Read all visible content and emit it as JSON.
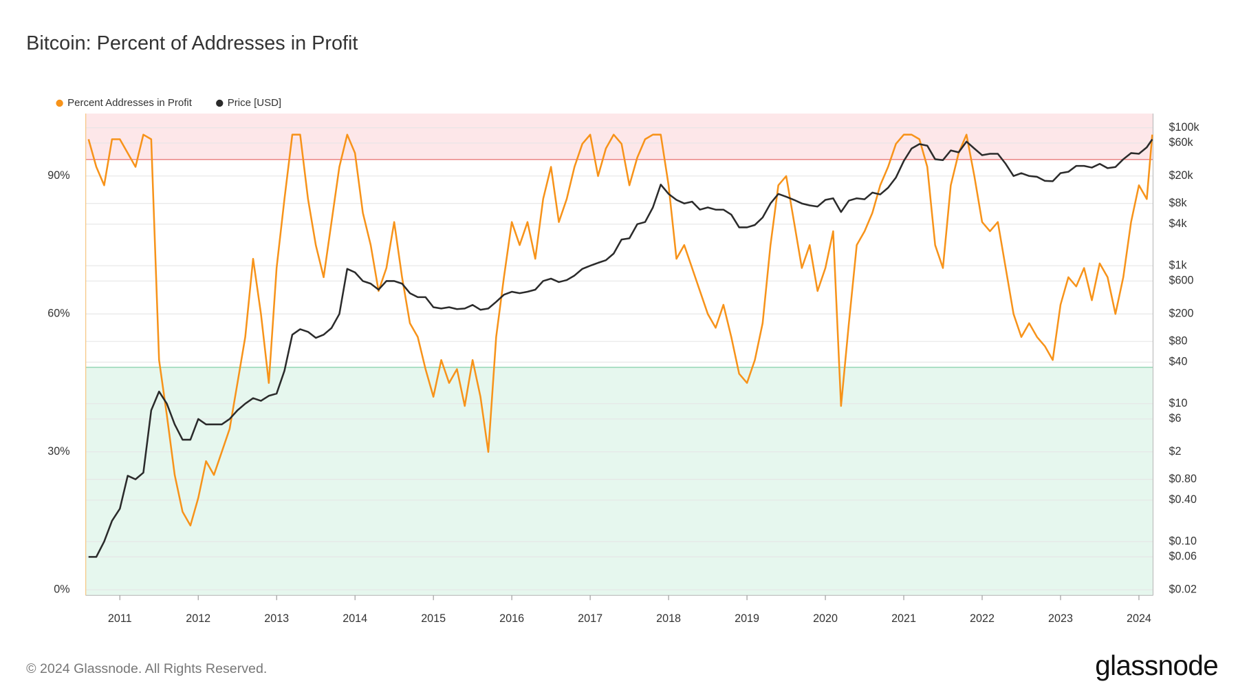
{
  "chart_data": {
    "type": "line",
    "title": "Bitcoin: Percent of Addresses in Profit",
    "x": [
      2010.6,
      2010.7,
      2010.8,
      2010.9,
      2011.0,
      2011.1,
      2011.2,
      2011.3,
      2011.4,
      2011.5,
      2011.6,
      2011.7,
      2011.8,
      2011.9,
      2012.0,
      2012.1,
      2012.2,
      2012.3,
      2012.4,
      2012.5,
      2012.6,
      2012.7,
      2012.8,
      2012.9,
      2013.0,
      2013.1,
      2013.2,
      2013.3,
      2013.4,
      2013.5,
      2013.6,
      2013.7,
      2013.8,
      2013.9,
      2014.0,
      2014.1,
      2014.2,
      2014.3,
      2014.4,
      2014.5,
      2014.6,
      2014.7,
      2014.8,
      2014.9,
      2015.0,
      2015.1,
      2015.2,
      2015.3,
      2015.4,
      2015.5,
      2015.6,
      2015.7,
      2015.8,
      2015.9,
      2016.0,
      2016.1,
      2016.2,
      2016.3,
      2016.4,
      2016.5,
      2016.6,
      2016.7,
      2016.8,
      2016.9,
      2017.0,
      2017.1,
      2017.2,
      2017.3,
      2017.4,
      2017.5,
      2017.6,
      2017.7,
      2017.8,
      2017.9,
      2018.0,
      2018.1,
      2018.2,
      2018.3,
      2018.4,
      2018.5,
      2018.6,
      2018.7,
      2018.8,
      2018.9,
      2019.0,
      2019.1,
      2019.2,
      2019.3,
      2019.4,
      2019.5,
      2019.6,
      2019.7,
      2019.8,
      2019.9,
      2020.0,
      2020.1,
      2020.2,
      2020.3,
      2020.4,
      2020.5,
      2020.6,
      2020.7,
      2020.8,
      2020.9,
      2021.0,
      2021.1,
      2021.2,
      2021.3,
      2021.4,
      2021.5,
      2021.6,
      2021.7,
      2021.8,
      2021.9,
      2022.0,
      2022.1,
      2022.2,
      2022.3,
      2022.4,
      2022.5,
      2022.6,
      2022.7,
      2022.8,
      2022.9,
      2023.0,
      2023.1,
      2023.2,
      2023.3,
      2023.4,
      2023.5,
      2023.6,
      2023.7,
      2023.8,
      2023.9,
      2024.0,
      2024.1,
      2024.17
    ],
    "series": [
      {
        "name": "Percent Addresses in Profit",
        "color": "#f7931a",
        "axis": "y",
        "values": [
          98,
          92,
          88,
          98,
          98,
          95,
          92,
          99,
          98,
          50,
          38,
          25,
          17,
          14,
          20,
          28,
          25,
          30,
          35,
          45,
          55,
          72,
          60,
          45,
          70,
          85,
          99,
          99,
          85,
          75,
          68,
          80,
          92,
          99,
          95,
          82,
          75,
          65,
          70,
          80,
          68,
          58,
          55,
          48,
          42,
          50,
          45,
          48,
          40,
          50,
          42,
          30,
          55,
          68,
          80,
          75,
          80,
          72,
          85,
          92,
          80,
          85,
          92,
          97,
          99,
          90,
          96,
          99,
          97,
          88,
          94,
          98,
          99,
          99,
          88,
          72,
          75,
          70,
          65,
          60,
          57,
          62,
          55,
          47,
          45,
          50,
          58,
          75,
          88,
          90,
          80,
          70,
          75,
          65,
          70,
          78,
          40,
          58,
          75,
          78,
          82,
          88,
          92,
          97,
          99,
          99,
          98,
          92,
          75,
          70,
          88,
          95,
          99,
          90,
          80,
          78,
          80,
          70,
          60,
          55,
          58,
          55,
          53,
          50,
          62,
          68,
          66,
          70,
          63,
          71,
          68,
          60,
          68,
          80,
          88,
          85,
          99
        ]
      },
      {
        "name": "Price [USD]",
        "color": "#2b2b2b",
        "axis": "y2",
        "values": [
          0.06,
          0.06,
          0.1,
          0.2,
          0.3,
          0.9,
          0.8,
          1,
          8,
          15,
          10,
          5,
          3,
          3,
          6,
          5,
          5,
          5,
          6,
          8,
          10,
          12,
          11,
          13,
          14,
          30,
          100,
          120,
          110,
          90,
          100,
          125,
          200,
          900,
          800,
          600,
          550,
          450,
          600,
          600,
          550,
          400,
          350,
          350,
          250,
          240,
          250,
          235,
          240,
          270,
          230,
          240,
          300,
          380,
          420,
          400,
          420,
          450,
          600,
          650,
          580,
          620,
          720,
          900,
          1000,
          1100,
          1200,
          1500,
          2400,
          2500,
          4000,
          4300,
          7000,
          15000,
          11000,
          9000,
          8000,
          8500,
          6500,
          7000,
          6500,
          6500,
          5500,
          3600,
          3600,
          3900,
          5000,
          8000,
          11000,
          10000,
          9000,
          8000,
          7500,
          7200,
          9000,
          9500,
          6000,
          8800,
          9500,
          9200,
          11500,
          10800,
          13500,
          19000,
          33000,
          50000,
          58000,
          55000,
          35000,
          34000,
          47000,
          44000,
          63000,
          50000,
          40000,
          42000,
          42000,
          30000,
          20000,
          22000,
          20000,
          19500,
          17000,
          16800,
          22000,
          23000,
          28000,
          28000,
          26500,
          30000,
          26000,
          27000,
          35000,
          43000,
          42000,
          52000,
          68000
        ]
      }
    ],
    "xlim": [
      2010.565,
      2024.18
    ],
    "xticks": [
      2011,
      2012,
      2013,
      2014,
      2015,
      2016,
      2017,
      2018,
      2019,
      2020,
      2021,
      2022,
      2023,
      2024
    ],
    "ylim": [
      -1.2,
      103.6
    ],
    "yticks": [
      {
        "value": 0,
        "label": "0%"
      },
      {
        "value": 30,
        "label": "30%"
      },
      {
        "value": 60,
        "label": "60%"
      },
      {
        "value": 90,
        "label": "90%"
      }
    ],
    "y2lim": [
      0.0166,
      161000
    ],
    "y2_log_scale": true,
    "y2ticks": [
      {
        "value": 100000,
        "label": "$100k"
      },
      {
        "value": 60000,
        "label": "$60k"
      },
      {
        "value": 20000,
        "label": "$20k"
      },
      {
        "value": 8000,
        "label": "$8k"
      },
      {
        "value": 4000,
        "label": "$4k"
      },
      {
        "value": 1000,
        "label": "$1k"
      },
      {
        "value": 600,
        "label": "$600"
      },
      {
        "value": 200,
        "label": "$200"
      },
      {
        "value": 80,
        "label": "$80"
      },
      {
        "value": 40,
        "label": "$40"
      },
      {
        "value": 10,
        "label": "$10"
      },
      {
        "value": 6,
        "label": "$6"
      },
      {
        "value": 2,
        "label": "$2"
      },
      {
        "value": 0.8,
        "label": "$0.80"
      },
      {
        "value": 0.4,
        "label": "$0.40"
      },
      {
        "value": 0.1,
        "label": "$0.10"
      },
      {
        "value": 0.06,
        "label": "$0.06"
      },
      {
        "value": 0.02,
        "label": "$0.02"
      }
    ],
    "grid": true,
    "legend": "top-left",
    "bands": [
      {
        "above": 93.6,
        "color": "#fde7e9",
        "edge_color": "#e87a7a"
      },
      {
        "below": 48.4,
        "color": "#e6f7ee",
        "edge_color": "#8fd3b0"
      }
    ]
  },
  "footer": {
    "copyright": "© 2024 Glassnode. All Rights Reserved.",
    "logo": "glassnode"
  }
}
